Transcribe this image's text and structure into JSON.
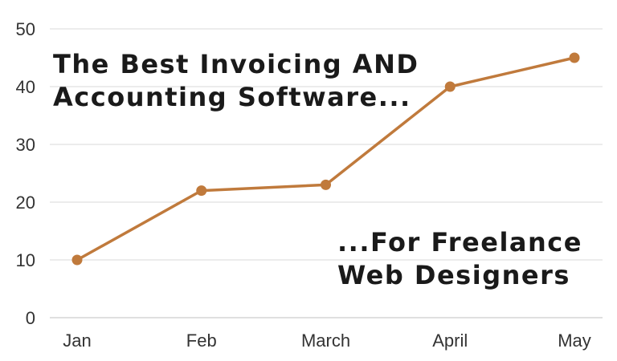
{
  "chart_data": {
    "type": "line",
    "categories": [
      "Jan",
      "Feb",
      "March",
      "April",
      "May"
    ],
    "series": [
      {
        "values": [
          10,
          22,
          23,
          40,
          45
        ]
      }
    ],
    "ylim": [
      0,
      50
    ],
    "yticks": [
      0,
      10,
      20,
      30,
      40,
      50
    ],
    "grid": true,
    "legend": "none",
    "colors": {
      "line": "#c07a3c",
      "grid": "#d9d9d9"
    },
    "annotations": {
      "headline": [
        "The Best Invoicing AND",
        "Accounting Software..."
      ],
      "tagline": [
        "...For Freelance",
        "Web Designers"
      ]
    }
  }
}
